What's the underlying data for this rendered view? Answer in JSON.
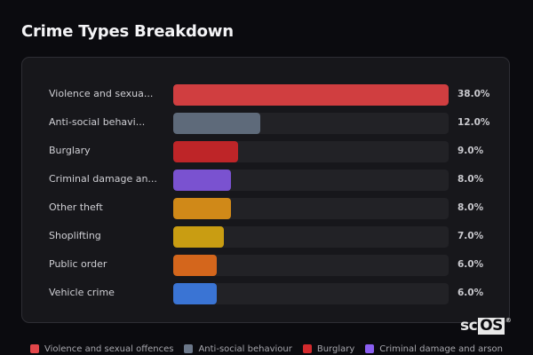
{
  "title": "Crime Types Breakdown",
  "watermark": {
    "sc": "sc",
    "os": "OS",
    "reg": "®"
  },
  "rows": [
    {
      "label": "Violence and sexua...",
      "value": "38.0%",
      "color": "#d03e40",
      "pct": 38.0
    },
    {
      "label": "Anti-social behavi...",
      "value": "12.0%",
      "color": "#5e6a7a",
      "pct": 12.0
    },
    {
      "label": "Burglary",
      "value": "9.0%",
      "color": "#be2528",
      "pct": 9.0
    },
    {
      "label": "Criminal damage an...",
      "value": "8.0%",
      "color": "#7a52d0",
      "pct": 8.0
    },
    {
      "label": "Other theft",
      "value": "8.0%",
      "color": "#d08918",
      "pct": 8.0
    },
    {
      "label": "Shoplifting",
      "value": "7.0%",
      "color": "#c99d12",
      "pct": 7.0
    },
    {
      "label": "Public order",
      "value": "6.0%",
      "color": "#d4661c",
      "pct": 6.0
    },
    {
      "label": "Vehicle crime",
      "value": "6.0%",
      "color": "#3a74d4",
      "pct": 6.0
    }
  ],
  "legend": [
    {
      "label": "Violence and sexual offences",
      "color": "#e2474a"
    },
    {
      "label": "Anti-social behaviour",
      "color": "#6b7789"
    },
    {
      "label": "Burglary",
      "color": "#d32a2d"
    },
    {
      "label": "Criminal damage and arson",
      "color": "#8a5ef0"
    }
  ],
  "chart_data": {
    "type": "bar",
    "orientation": "horizontal",
    "title": "Crime Types Breakdown",
    "categories": [
      "Violence and sexual offences",
      "Anti-social behaviour",
      "Burglary",
      "Criminal damage and arson",
      "Other theft",
      "Shoplifting",
      "Public order",
      "Vehicle crime"
    ],
    "display_labels": [
      "Violence and sexua...",
      "Anti-social behavi...",
      "Burglary",
      "Criminal damage an...",
      "Other theft",
      "Shoplifting",
      "Public order",
      "Vehicle crime"
    ],
    "values": [
      38.0,
      12.0,
      9.0,
      8.0,
      8.0,
      7.0,
      6.0,
      6.0
    ],
    "value_labels": [
      "38.0%",
      "12.0%",
      "9.0%",
      "8.0%",
      "8.0%",
      "7.0%",
      "6.0%",
      "6.0%"
    ],
    "unit": "%",
    "xlabel": "",
    "ylabel": "",
    "xlim": [
      0,
      38
    ],
    "grid": false,
    "legend": {
      "position": "bottom",
      "entries": [
        "Violence and sexual offences",
        "Anti-social behaviour",
        "Burglary",
        "Criminal damage and arson"
      ]
    }
  }
}
